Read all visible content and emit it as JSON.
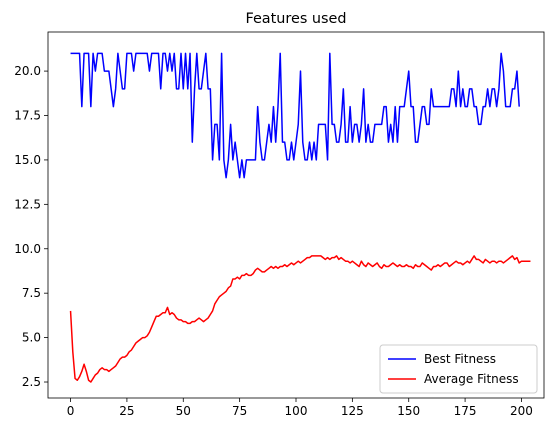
{
  "chart_data": {
    "type": "line",
    "title": "Features used",
    "xlabel": "",
    "ylabel": "",
    "xlim": [
      -10,
      210
    ],
    "ylim": [
      1.6,
      22.2
    ],
    "xticks": [
      0,
      25,
      50,
      75,
      100,
      125,
      150,
      175,
      200
    ],
    "yticks": [
      2.5,
      5.0,
      7.5,
      10.0,
      12.5,
      15.0,
      17.5,
      20.0
    ],
    "ytick_labels": [
      "2.5",
      "5.0",
      "7.5",
      "10.0",
      "12.5",
      "15.0",
      "17.5",
      "20.0"
    ],
    "grid": false,
    "legend_position": "lower-right",
    "series": [
      {
        "name": "Best Fitness",
        "color": "#0000ff",
        "values": [
          21,
          21,
          21,
          21,
          21,
          18,
          21,
          21,
          21,
          18,
          21,
          20,
          21,
          21,
          21,
          20,
          20,
          20,
          19,
          18,
          19,
          21,
          20,
          19,
          19,
          21,
          21,
          21,
          20,
          21,
          21,
          21,
          21,
          21,
          21,
          20,
          21,
          21,
          21,
          21,
          19,
          21,
          21,
          20,
          21,
          20,
          21,
          19,
          19,
          21,
          19,
          21,
          19,
          21,
          16,
          19,
          21,
          19,
          19,
          20,
          21,
          19,
          19,
          15,
          17,
          17,
          15,
          21,
          15,
          14,
          15,
          17,
          15,
          16,
          15,
          14,
          15,
          14,
          15,
          15,
          15,
          15,
          15,
          18,
          16,
          15,
          15,
          16,
          17,
          16,
          18,
          16,
          18,
          21,
          16,
          16,
          15,
          15,
          16,
          15,
          16,
          17,
          20,
          16,
          15,
          15,
          16,
          15,
          16,
          15,
          17,
          17,
          17,
          17,
          15,
          21,
          17,
          17,
          16,
          16,
          17,
          19,
          16,
          16,
          18,
          16,
          17,
          17,
          16,
          17,
          19,
          16,
          17,
          16,
          16,
          17,
          17,
          17,
          17,
          18,
          18,
          16,
          17,
          16,
          18,
          16,
          18,
          18,
          18,
          19,
          20,
          18,
          18,
          16,
          16,
          17,
          18,
          18,
          17,
          17,
          19,
          18,
          18,
          18,
          18,
          18,
          18,
          18,
          18,
          19,
          19,
          18,
          20,
          18,
          19,
          18,
          18,
          19,
          19,
          18,
          18,
          17,
          17,
          18,
          18,
          19,
          18,
          19,
          19,
          18,
          19,
          21,
          20,
          18,
          18,
          18,
          19,
          19,
          20,
          18
        ]
      },
      {
        "name": "Average Fitness",
        "color": "#ff0000",
        "values": [
          6.5,
          4.2,
          2.7,
          2.6,
          2.8,
          3.1,
          3.5,
          3.1,
          2.6,
          2.5,
          2.7,
          2.9,
          3.0,
          3.2,
          3.3,
          3.2,
          3.2,
          3.1,
          3.2,
          3.3,
          3.4,
          3.6,
          3.8,
          3.9,
          3.9,
          4.0,
          4.2,
          4.3,
          4.5,
          4.7,
          4.8,
          4.9,
          5.0,
          5.0,
          5.1,
          5.3,
          5.6,
          5.9,
          6.2,
          6.2,
          6.3,
          6.4,
          6.4,
          6.7,
          6.3,
          6.4,
          6.3,
          6.1,
          6.0,
          6.0,
          5.9,
          5.9,
          5.8,
          5.8,
          5.9,
          5.9,
          6.0,
          6.1,
          6.0,
          5.9,
          6.0,
          6.1,
          6.3,
          6.5,
          6.9,
          7.1,
          7.3,
          7.4,
          7.5,
          7.6,
          7.8,
          7.9,
          8.3,
          8.3,
          8.4,
          8.3,
          8.5,
          8.5,
          8.6,
          8.5,
          8.5,
          8.6,
          8.8,
          8.9,
          8.8,
          8.7,
          8.7,
          8.8,
          8.9,
          9.0,
          8.9,
          9.0,
          8.9,
          9.0,
          9.0,
          9.1,
          9.0,
          9.1,
          9.2,
          9.1,
          9.2,
          9.3,
          9.2,
          9.3,
          9.4,
          9.5,
          9.5,
          9.6,
          9.6,
          9.6,
          9.6,
          9.6,
          9.5,
          9.4,
          9.5,
          9.4,
          9.5,
          9.5,
          9.6,
          9.4,
          9.5,
          9.4,
          9.3,
          9.3,
          9.2,
          9.3,
          9.2,
          9.1,
          9.0,
          9.3,
          9.1,
          9.0,
          9.2,
          9.1,
          9.0,
          9.1,
          9.2,
          9.0,
          8.9,
          9.1,
          9.0,
          9.0,
          9.1,
          9.2,
          9.1,
          9.0,
          9.1,
          9.0,
          9.0,
          9.1,
          9.0,
          9.0,
          8.9,
          9.1,
          9.0,
          9.0,
          9.2,
          9.1,
          9.0,
          8.9,
          8.8,
          9.0,
          9.0,
          9.1,
          9.0,
          9.1,
          9.2,
          9.2,
          9.0,
          9.1,
          9.2,
          9.3,
          9.2,
          9.2,
          9.1,
          9.2,
          9.3,
          9.2,
          9.4,
          9.6,
          9.4,
          9.4,
          9.3,
          9.2,
          9.4,
          9.3,
          9.2,
          9.3,
          9.3,
          9.2,
          9.3,
          9.3,
          9.2,
          9.3,
          9.4,
          9.5,
          9.6,
          9.4,
          9.5,
          9.2,
          9.3,
          9.3,
          9.3,
          9.3,
          9.3
        ]
      }
    ]
  }
}
